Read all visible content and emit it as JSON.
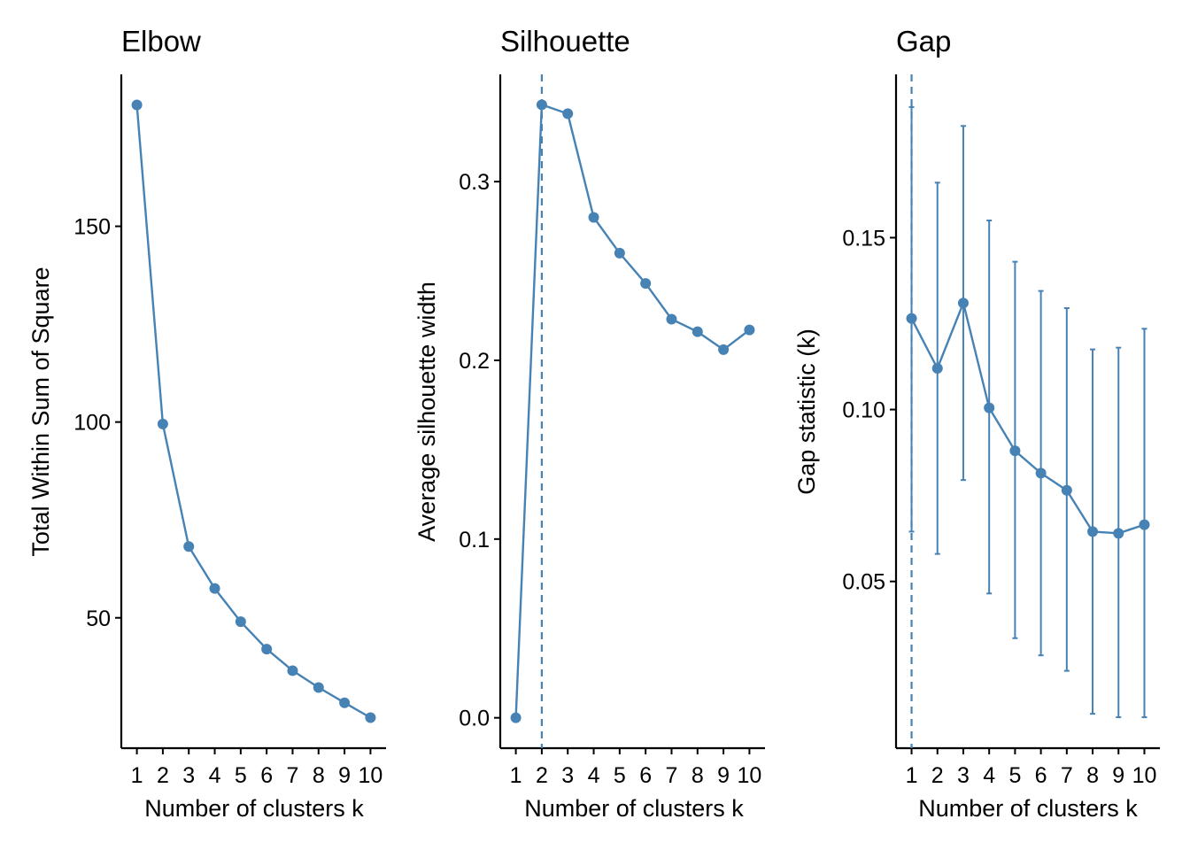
{
  "colors": {
    "series": "#4682B4",
    "axis": "#000000",
    "background": "#FFFFFF"
  },
  "chart_data": [
    {
      "type": "line",
      "title": "Elbow",
      "xlabel": "Number of clusters k",
      "ylabel": "Total Within Sum of Square",
      "x": [
        1,
        2,
        3,
        4,
        5,
        6,
        7,
        8,
        9,
        10
      ],
      "series": [
        {
          "values": [
            181,
            99.5,
            68.2,
            57.5,
            49.0,
            42.0,
            36.5,
            32.2,
            28.3,
            24.5
          ]
        }
      ],
      "xticks": [
        "1",
        "2",
        "3",
        "4",
        "5",
        "6",
        "7",
        "8",
        "9",
        "10"
      ],
      "yticks": [
        50,
        100,
        150
      ],
      "ytick_labels": [
        "50",
        "100",
        "150"
      ],
      "xlim": [
        0.4,
        10.6
      ],
      "ylim": [
        16.7,
        188.8
      ],
      "grid": false
    },
    {
      "type": "line",
      "title": "Silhouette",
      "xlabel": "Number of clusters k",
      "ylabel": "Average silhouette width",
      "x": [
        1,
        2,
        3,
        4,
        5,
        6,
        7,
        8,
        9,
        10
      ],
      "series": [
        {
          "values": [
            0.0,
            0.343,
            0.338,
            0.28,
            0.26,
            0.243,
            0.223,
            0.216,
            0.206,
            0.217
          ]
        }
      ],
      "xticks": [
        "1",
        "2",
        "3",
        "4",
        "5",
        "6",
        "7",
        "8",
        "9",
        "10"
      ],
      "yticks": [
        0.0,
        0.1,
        0.2,
        0.3
      ],
      "ytick_labels": [
        "0.0",
        "0.1",
        "0.2",
        "0.3"
      ],
      "xlim": [
        0.4,
        10.6
      ],
      "ylim": [
        -0.017,
        0.36
      ],
      "optimal_k": 2,
      "grid": false
    },
    {
      "type": "line",
      "title": "Gap",
      "xlabel": "Number of clusters k",
      "ylabel": "Gap statistic (k)",
      "x": [
        1,
        2,
        3,
        4,
        5,
        6,
        7,
        8,
        9,
        10
      ],
      "series": [
        {
          "values": [
            0.1265,
            0.112,
            0.131,
            0.1005,
            0.088,
            0.0815,
            0.0765,
            0.0645,
            0.064,
            0.0665
          ],
          "error_low": [
            0.0645,
            0.058,
            0.0795,
            0.0465,
            0.0335,
            0.0285,
            0.024,
            0.0115,
            0.0105,
            0.0105
          ],
          "error_high": [
            0.188,
            0.166,
            0.1825,
            0.155,
            0.143,
            0.1345,
            0.1295,
            0.1175,
            0.118,
            0.1235
          ]
        }
      ],
      "xticks": [
        "1",
        "2",
        "3",
        "4",
        "5",
        "6",
        "7",
        "8",
        "9",
        "10"
      ],
      "yticks": [
        0.05,
        0.1,
        0.15
      ],
      "ytick_labels": [
        "0.05",
        "0.10",
        "0.15"
      ],
      "xlim": [
        0.4,
        10.6
      ],
      "ylim": [
        0.0015,
        0.1975
      ],
      "optimal_k": 1,
      "grid": false
    }
  ]
}
